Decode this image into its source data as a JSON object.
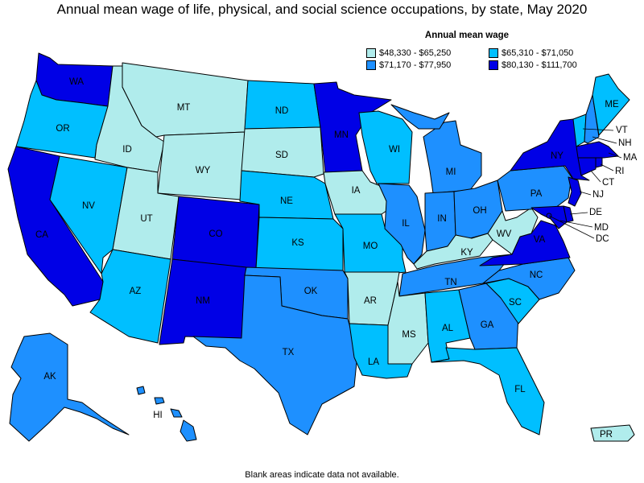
{
  "title": "Annual mean wage of life, physical, and social science occupations, by state, May 2020",
  "legend": {
    "title": "Annual mean wage",
    "bins": [
      {
        "label": "$48,330 - $65,250",
        "color": "#b0ecec"
      },
      {
        "label": "$65,310 - $71,050",
        "color": "#00bfff"
      },
      {
        "label": "$71,170 - $77,950",
        "color": "#1e90ff"
      },
      {
        "label": "$80,130 - $111,700",
        "color": "#0000e6"
      }
    ]
  },
  "footnote": "Blank areas indicate data not available.",
  "states": {
    "WA": {
      "label": "WA",
      "bin": 3
    },
    "OR": {
      "label": "OR",
      "bin": 1
    },
    "CA": {
      "label": "CA",
      "bin": 3
    },
    "NV": {
      "label": "NV",
      "bin": 1
    },
    "ID": {
      "label": "ID",
      "bin": 0
    },
    "MT": {
      "label": "MT",
      "bin": 0
    },
    "WY": {
      "label": "WY",
      "bin": 0
    },
    "UT": {
      "label": "UT",
      "bin": 0
    },
    "AZ": {
      "label": "AZ",
      "bin": 1
    },
    "CO": {
      "label": "CO",
      "bin": 3
    },
    "NM": {
      "label": "NM",
      "bin": 3
    },
    "ND": {
      "label": "ND",
      "bin": 1
    },
    "SD": {
      "label": "SD",
      "bin": 0
    },
    "NE": {
      "label": "NE",
      "bin": 1
    },
    "KS": {
      "label": "KS",
      "bin": 1
    },
    "OK": {
      "label": "OK",
      "bin": 2
    },
    "TX": {
      "label": "TX",
      "bin": 2
    },
    "MN": {
      "label": "MN",
      "bin": 3
    },
    "IA": {
      "label": "IA",
      "bin": 0
    },
    "MO": {
      "label": "MO",
      "bin": 1
    },
    "AR": {
      "label": "AR",
      "bin": 0
    },
    "LA": {
      "label": "LA",
      "bin": 1
    },
    "WI": {
      "label": "WI",
      "bin": 1
    },
    "IL": {
      "label": "IL",
      "bin": 2
    },
    "MI": {
      "label": "MI",
      "bin": 2
    },
    "IN": {
      "label": "IN",
      "bin": 2
    },
    "OH": {
      "label": "OH",
      "bin": 2
    },
    "KY": {
      "label": "KY",
      "bin": 0
    },
    "TN": {
      "label": "TN",
      "bin": 2
    },
    "MS": {
      "label": "MS",
      "bin": 0
    },
    "AL": {
      "label": "AL",
      "bin": 1
    },
    "GA": {
      "label": "GA",
      "bin": 2
    },
    "FL": {
      "label": "FL",
      "bin": 1
    },
    "SC": {
      "label": "SC",
      "bin": 1
    },
    "NC": {
      "label": "NC",
      "bin": 2
    },
    "VA": {
      "label": "VA",
      "bin": 3
    },
    "WV": {
      "label": "WV",
      "bin": 0
    },
    "PA": {
      "label": "PA",
      "bin": 2
    },
    "NY": {
      "label": "NY",
      "bin": 3
    },
    "VT": {
      "label": "VT",
      "bin": 1
    },
    "NH": {
      "label": "NH",
      "bin": 2
    },
    "ME": {
      "label": "ME",
      "bin": 1
    },
    "MA": {
      "label": "MA",
      "bin": 3
    },
    "RI": {
      "label": "RI",
      "bin": 3
    },
    "CT": {
      "label": "CT",
      "bin": 3
    },
    "NJ": {
      "label": "NJ",
      "bin": 3
    },
    "DE": {
      "label": "DE",
      "bin": 3
    },
    "MD": {
      "label": "MD",
      "bin": 3
    },
    "DC": {
      "label": "DC",
      "bin": 3
    },
    "AK": {
      "label": "AK",
      "bin": 2
    },
    "HI": {
      "label": "HI",
      "bin": 2
    },
    "PR": {
      "label": "PR",
      "bin": 0
    }
  }
}
